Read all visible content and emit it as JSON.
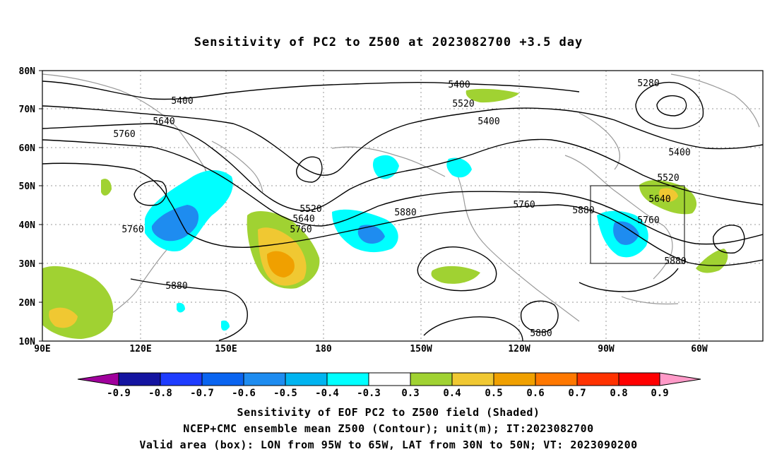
{
  "title": "Sensitivity of PC2 to Z500 at 2023082700 +3.5 day",
  "map": {
    "lat_ticks": [
      "80N",
      "70N",
      "60N",
      "50N",
      "40N",
      "30N",
      "20N",
      "10N"
    ],
    "lon_ticks": [
      "90E",
      "120E",
      "150E",
      "180",
      "150W",
      "120W",
      "90W",
      "60W"
    ],
    "extent": {
      "lon_min": 90,
      "lon_max": 310,
      "lat_min": 10,
      "lat_max": 80
    },
    "valid_box": {
      "lon_min": "95W",
      "lon_max": "65W",
      "lat_min": "30N",
      "lat_max": "50N"
    },
    "contour_labels": [
      "5400",
      "5400",
      "5280",
      "5520",
      "5400",
      "5640",
      "5760",
      "5400",
      "5520",
      "5520",
      "5640",
      "5760",
      "5880",
      "5760",
      "5880",
      "5640",
      "5760",
      "5760",
      "5880",
      "5880",
      "5880"
    ],
    "shading_levels": [
      "0.3",
      "0.4",
      "0.5",
      "0.6"
    ],
    "colors": {
      "coastline": "#9a9a9a",
      "contour": "#000000",
      "grid": "#9a9a9a"
    }
  },
  "colorbar": {
    "labels": [
      "-0.9",
      "-0.8",
      "-0.7",
      "-0.6",
      "-0.5",
      "-0.4",
      "-0.3",
      "0.3",
      "0.4",
      "0.5",
      "0.6",
      "0.7",
      "0.8",
      "0.9"
    ],
    "colors": [
      "#a0009c",
      "#1414a0",
      "#1e3cff",
      "#0a64f0",
      "#1e8cf0",
      "#00b4f0",
      "#00ffff",
      "#ffffff",
      "#a0d232",
      "#f0c832",
      "#f0a000",
      "#ff7800",
      "#ff3200",
      "#ff0000",
      "#ff9ac8"
    ]
  },
  "footer": {
    "line1": "Sensitivity of EOF PC2 to Z500 field (Shaded)",
    "line2": "NCEP+CMC ensemble mean Z500 (Contour); unit(m); IT:2023082700",
    "line3": "Valid area (box): LON from 95W to 65W, LAT from 30N to 50N; VT: 2023090200"
  }
}
